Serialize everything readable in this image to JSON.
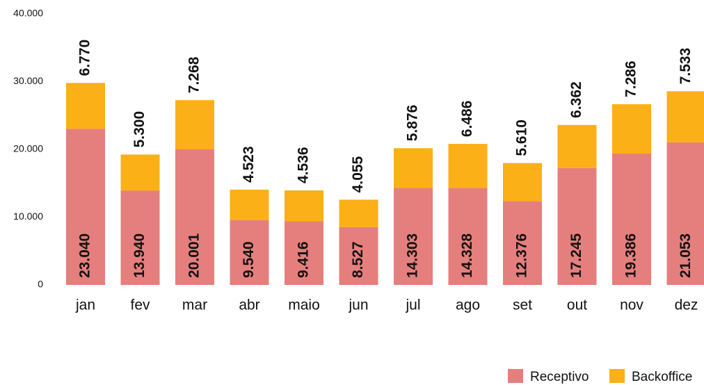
{
  "chart_data": {
    "type": "stacked_bar",
    "categories": [
      "jan",
      "fev",
      "mar",
      "abr",
      "maio",
      "jun",
      "jul",
      "ago",
      "set",
      "out",
      "nov",
      "dez"
    ],
    "series": [
      {
        "name": "Receptivo",
        "color": "#e57f7d",
        "values": [
          23040,
          13940,
          20001,
          9540,
          9416,
          8527,
          14303,
          14328,
          12376,
          17245,
          19386,
          21053
        ],
        "value_labels": [
          "23.040",
          "13.940",
          "20.001",
          "9.540",
          "9.416",
          "8.527",
          "14.303",
          "14.328",
          "12.376",
          "17.245",
          "19.386",
          "21.053"
        ]
      },
      {
        "name": "Backoffice",
        "color": "#fbb017",
        "values": [
          6770,
          5300,
          7268,
          4523,
          4536,
          4055,
          5876,
          6486,
          5610,
          6362,
          7286,
          7533
        ],
        "value_labels": [
          "6.770",
          "5.300",
          "7.268",
          "4.523",
          "4.536",
          "4.055",
          "5.876",
          "6.486",
          "5.610",
          "6.362",
          "7.286",
          "7.533"
        ]
      }
    ],
    "ylim": [
      0,
      40000
    ],
    "yticks": [
      0,
      {
        "value": 10000,
        "label": "10.000"
      },
      {
        "value": 20000,
        "label": "20.000"
      },
      {
        "value": 30000,
        "label": "30.000"
      },
      {
        "value": 40000,
        "label": "40.000"
      }
    ],
    "grid": false,
    "legend": "bottom-right"
  }
}
